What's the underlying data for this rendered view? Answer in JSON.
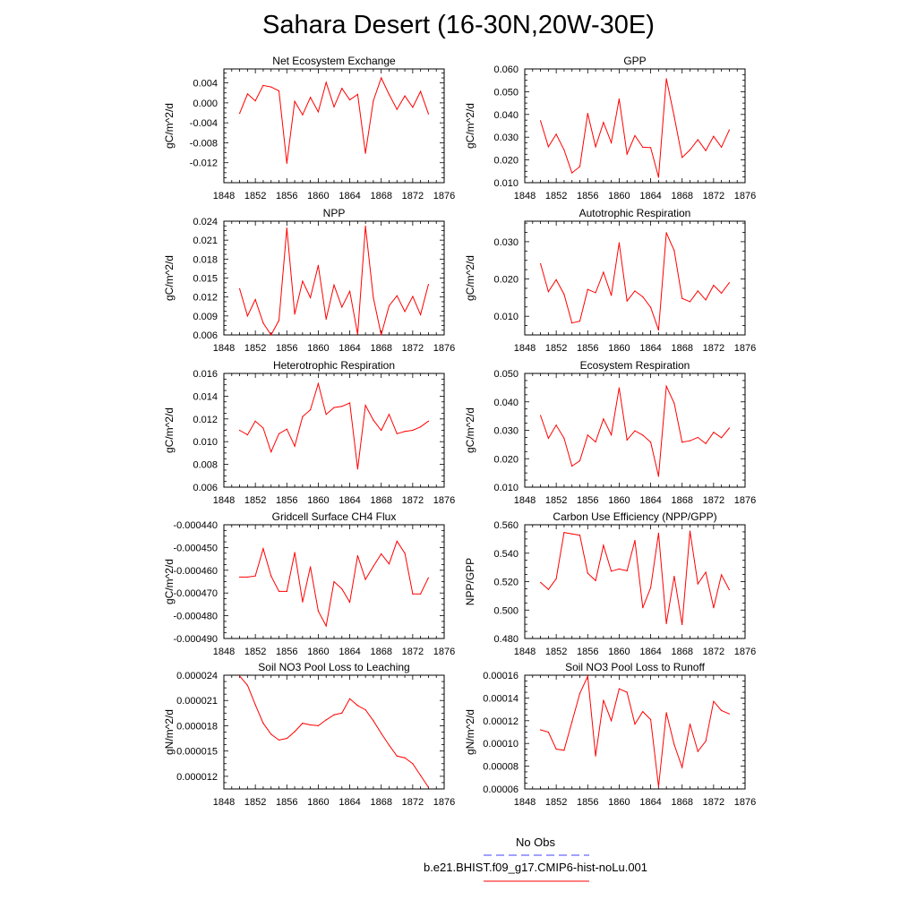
{
  "title": "Sahara Desert (16-30N,20W-30E)",
  "legend": {
    "entries": [
      {
        "label": "No Obs",
        "color": "#4040ff",
        "dash": true
      },
      {
        "label": "b.e21.BHIST.f09_g17.CMIP6-hist-noLu.001",
        "color": "#ff0000",
        "dash": false
      }
    ]
  },
  "chart_data": [
    {
      "type": "line",
      "title": "Net Ecosystem Exchange",
      "ylabel": "gC/m^2/d",
      "xlim": [
        1848,
        1876
      ],
      "ylim": [
        -0.016,
        0.0068
      ],
      "xticks": [
        1848,
        1852,
        1856,
        1860,
        1864,
        1868,
        1872,
        1876
      ],
      "yticks": [
        -0.012,
        -0.008,
        -0.004,
        0.0,
        0.004
      ],
      "ytick_labels": [
        "-0.012",
        "-0.008",
        "-0.004",
        "0.000",
        "0.004"
      ],
      "series": [
        {
          "color": "#ff0000",
          "x": [
            1850,
            1851,
            1852,
            1853,
            1854,
            1855,
            1856,
            1857,
            1858,
            1859,
            1860,
            1861,
            1862,
            1863,
            1864,
            1865,
            1866,
            1867,
            1868,
            1869,
            1870,
            1871,
            1872,
            1873,
            1874
          ],
          "y": [
            -0.0021,
            0.0018,
            0.0004,
            0.0035,
            0.0032,
            0.0024,
            -0.0121,
            0.0003,
            -0.0024,
            0.0011,
            -0.0018,
            0.0041,
            -0.0008,
            0.0029,
            0.0006,
            0.0017,
            -0.0101,
            0.0004,
            0.005,
            0.0017,
            -0.0013,
            0.0014,
            -0.0009,
            0.0023,
            -0.0022
          ]
        }
      ]
    },
    {
      "type": "line",
      "title": "GPP",
      "ylabel": "gC/m^2/d",
      "xlim": [
        1848,
        1876
      ],
      "ylim": [
        0.01,
        0.06
      ],
      "xticks": [
        1848,
        1852,
        1856,
        1860,
        1864,
        1868,
        1872,
        1876
      ],
      "yticks": [
        0.01,
        0.02,
        0.03,
        0.04,
        0.05,
        0.06
      ],
      "ytick_labels": [
        "0.010",
        "0.020",
        "0.030",
        "0.040",
        "0.050",
        "0.060"
      ],
      "series": [
        {
          "color": "#ff0000",
          "x": [
            1850,
            1851,
            1852,
            1853,
            1854,
            1855,
            1856,
            1857,
            1858,
            1859,
            1860,
            1861,
            1862,
            1863,
            1864,
            1865,
            1866,
            1867,
            1868,
            1869,
            1870,
            1871,
            1872,
            1873,
            1874
          ],
          "y": [
            0.0372,
            0.0258,
            0.0313,
            0.0244,
            0.0143,
            0.0171,
            0.0404,
            0.0258,
            0.0365,
            0.0276,
            0.0468,
            0.0226,
            0.0307,
            0.0256,
            0.0254,
            0.0124,
            0.0557,
            0.0391,
            0.0211,
            0.0244,
            0.0289,
            0.0241,
            0.0304,
            0.0256,
            0.0332
          ]
        }
      ]
    },
    {
      "type": "line",
      "title": "NPP",
      "ylabel": "gC/m^2/d",
      "xlim": [
        1848,
        1876
      ],
      "ylim": [
        0.006,
        0.024
      ],
      "xticks": [
        1848,
        1852,
        1856,
        1860,
        1864,
        1868,
        1872,
        1876
      ],
      "yticks": [
        0.006,
        0.009,
        0.012,
        0.015,
        0.018,
        0.021,
        0.024
      ],
      "ytick_labels": [
        "0.006",
        "0.009",
        "0.012",
        "0.015",
        "0.018",
        "0.021",
        "0.024"
      ],
      "series": [
        {
          "color": "#ff0000",
          "x": [
            1850,
            1851,
            1852,
            1853,
            1854,
            1855,
            1856,
            1857,
            1858,
            1859,
            1860,
            1861,
            1862,
            1863,
            1864,
            1865,
            1866,
            1867,
            1868,
            1869,
            1870,
            1871,
            1872,
            1873,
            1874
          ],
          "y": [
            0.0133,
            0.009,
            0.0116,
            0.0079,
            0.006,
            0.0083,
            0.0229,
            0.0093,
            0.0145,
            0.0119,
            0.017,
            0.0085,
            0.0139,
            0.0104,
            0.0129,
            0.0061,
            0.0232,
            0.0119,
            0.006,
            0.0106,
            0.0122,
            0.0097,
            0.0121,
            0.0092,
            0.014
          ]
        }
      ]
    },
    {
      "type": "line",
      "title": "Autotrophic Respiration",
      "ylabel": "gC/m^2/d",
      "xlim": [
        1848,
        1876
      ],
      "ylim": [
        0.005,
        0.0355
      ],
      "xticks": [
        1848,
        1852,
        1856,
        1860,
        1864,
        1868,
        1872,
        1876
      ],
      "yticks": [
        0.01,
        0.02,
        0.03
      ],
      "ytick_labels": [
        "0.010",
        "0.020",
        "0.030"
      ],
      "series": [
        {
          "color": "#ff0000",
          "x": [
            1850,
            1851,
            1852,
            1853,
            1854,
            1855,
            1856,
            1857,
            1858,
            1859,
            1860,
            1861,
            1862,
            1863,
            1864,
            1865,
            1866,
            1867,
            1868,
            1869,
            1870,
            1871,
            1872,
            1873,
            1874
          ],
          "y": [
            0.0241,
            0.0166,
            0.0198,
            0.0159,
            0.0082,
            0.0087,
            0.0172,
            0.0163,
            0.0218,
            0.0156,
            0.0297,
            0.0141,
            0.0168,
            0.0152,
            0.0124,
            0.0063,
            0.0324,
            0.0276,
            0.0148,
            0.0139,
            0.0168,
            0.0144,
            0.0183,
            0.0162,
            0.019
          ]
        }
      ]
    },
    {
      "type": "line",
      "title": "Heterotrophic Respiration",
      "ylabel": "gC/m^2/d",
      "xlim": [
        1848,
        1876
      ],
      "ylim": [
        0.006,
        0.016
      ],
      "xticks": [
        1848,
        1852,
        1856,
        1860,
        1864,
        1868,
        1872,
        1876
      ],
      "yticks": [
        0.006,
        0.008,
        0.01,
        0.012,
        0.014,
        0.016
      ],
      "ytick_labels": [
        "0.006",
        "0.008",
        "0.010",
        "0.012",
        "0.014",
        "0.016"
      ],
      "series": [
        {
          "color": "#ff0000",
          "x": [
            1850,
            1851,
            1852,
            1853,
            1854,
            1855,
            1856,
            1857,
            1858,
            1859,
            1860,
            1861,
            1862,
            1863,
            1864,
            1865,
            1866,
            1867,
            1868,
            1869,
            1870,
            1871,
            1872,
            1873,
            1874
          ],
          "y": [
            0.011,
            0.0106,
            0.0118,
            0.0112,
            0.0091,
            0.0107,
            0.0111,
            0.0096,
            0.0122,
            0.0128,
            0.0151,
            0.0124,
            0.013,
            0.0131,
            0.0134,
            0.0076,
            0.0132,
            0.0119,
            0.011,
            0.0124,
            0.0107,
            0.0109,
            0.011,
            0.0113,
            0.0118
          ]
        }
      ]
    },
    {
      "type": "line",
      "title": "Ecosystem Respiration",
      "ylabel": "gC/m^2/d",
      "xlim": [
        1848,
        1876
      ],
      "ylim": [
        0.01,
        0.05
      ],
      "xticks": [
        1848,
        1852,
        1856,
        1860,
        1864,
        1868,
        1872,
        1876
      ],
      "yticks": [
        0.01,
        0.02,
        0.03,
        0.04,
        0.05
      ],
      "ytick_labels": [
        "0.010",
        "0.020",
        "0.030",
        "0.040",
        "0.050"
      ],
      "series": [
        {
          "color": "#ff0000",
          "x": [
            1850,
            1851,
            1852,
            1853,
            1854,
            1855,
            1856,
            1857,
            1858,
            1859,
            1860,
            1861,
            1862,
            1863,
            1864,
            1865,
            1866,
            1867,
            1868,
            1869,
            1870,
            1871,
            1872,
            1873,
            1874
          ],
          "y": [
            0.0352,
            0.0272,
            0.0318,
            0.0272,
            0.0174,
            0.0193,
            0.0283,
            0.0259,
            0.034,
            0.0284,
            0.0449,
            0.0266,
            0.0298,
            0.0283,
            0.0258,
            0.0138,
            0.0455,
            0.0395,
            0.0258,
            0.0263,
            0.0275,
            0.0253,
            0.0293,
            0.0274,
            0.0308
          ]
        }
      ]
    },
    {
      "type": "line",
      "title": "Gridcell Surface CH4 Flux",
      "ylabel": "gC/m^2/d",
      "xlim": [
        1848,
        1876
      ],
      "ylim": [
        -0.00049,
        -0.00044
      ],
      "xticks": [
        1848,
        1852,
        1856,
        1860,
        1864,
        1868,
        1872,
        1876
      ],
      "yticks": [
        -0.00049,
        -0.00048,
        -0.00047,
        -0.00046,
        -0.00045,
        -0.00044
      ],
      "ytick_labels": [
        "-0.000490",
        "-0.000480",
        "-0.000470",
        "-0.000460",
        "-0.000450",
        "-0.000440"
      ],
      "series": [
        {
          "color": "#ff0000",
          "x": [
            1850,
            1851,
            1852,
            1853,
            1854,
            1855,
            1856,
            1857,
            1858,
            1859,
            1860,
            1861,
            1862,
            1863,
            1864,
            1865,
            1866,
            1867,
            1868,
            1869,
            1870,
            1871,
            1872,
            1873,
            1874
          ],
          "y": [
            -0.000463,
            -0.000463,
            -0.0004625,
            -0.0004505,
            -0.0004625,
            -0.0004693,
            -0.0004693,
            -0.0004522,
            -0.0004739,
            -0.0004585,
            -0.0004779,
            -0.0004845,
            -0.000465,
            -0.0004682,
            -0.000474,
            -0.0004536,
            -0.000464,
            -0.0004583,
            -0.0004528,
            -0.0004572,
            -0.0004472,
            -0.0004525,
            -0.0004704,
            -0.0004704,
            -0.0004633
          ]
        }
      ]
    },
    {
      "type": "line",
      "title": "Carbon Use Efficiency (NPP/GPP)",
      "ylabel": "NPP/GPP",
      "xlim": [
        1848,
        1876
      ],
      "ylim": [
        0.48,
        0.56
      ],
      "xticks": [
        1848,
        1852,
        1856,
        1860,
        1864,
        1868,
        1872,
        1876
      ],
      "yticks": [
        0.48,
        0.5,
        0.52,
        0.54,
        0.56
      ],
      "ytick_labels": [
        "0.480",
        "0.500",
        "0.520",
        "0.540",
        "0.560"
      ],
      "series": [
        {
          "color": "#ff0000",
          "x": [
            1850,
            1851,
            1852,
            1853,
            1854,
            1855,
            1856,
            1857,
            1858,
            1859,
            1860,
            1861,
            1862,
            1863,
            1864,
            1865,
            1866,
            1867,
            1868,
            1869,
            1870,
            1871,
            1872,
            1873,
            1874
          ],
          "y": [
            0.5195,
            0.5145,
            0.522,
            0.5546,
            0.5536,
            0.5527,
            0.5259,
            0.5207,
            0.5455,
            0.5274,
            0.5289,
            0.5276,
            0.549,
            0.5016,
            0.5157,
            0.5541,
            0.4905,
            0.5237,
            0.4898,
            0.5555,
            0.5184,
            0.5266,
            0.5016,
            0.5248,
            0.5143
          ]
        }
      ]
    },
    {
      "type": "line",
      "title": "Soil NO3 Pool Loss to Leaching",
      "ylabel": "gN/m^2/d",
      "xlim": [
        1848,
        1876
      ],
      "ylim": [
        1.05e-05,
        2.4e-05
      ],
      "xticks": [
        1848,
        1852,
        1856,
        1860,
        1864,
        1868,
        1872,
        1876
      ],
      "yticks": [
        1.2e-05,
        1.5e-05,
        1.8e-05,
        2.1e-05,
        2.4e-05
      ],
      "ytick_labels": [
        "0.000012",
        "0.000015",
        "0.000018",
        "0.000021",
        "0.000024"
      ],
      "series": [
        {
          "color": "#ff0000",
          "x": [
            1850,
            1851,
            1852,
            1853,
            1854,
            1855,
            1856,
            1857,
            1858,
            1859,
            1860,
            1861,
            1862,
            1863,
            1864,
            1865,
            1866,
            1867,
            1868,
            1869,
            1870,
            1871,
            1872,
            1873,
            1874
          ],
          "y": [
            2.39e-05,
            2.28e-05,
            2.05e-05,
            1.83e-05,
            1.7e-05,
            1.63e-05,
            1.65e-05,
            1.73e-05,
            1.83e-05,
            1.81e-05,
            1.8e-05,
            1.87e-05,
            1.93e-05,
            1.95e-05,
            2.12e-05,
            2.04e-05,
            1.99e-05,
            1.86e-05,
            1.71e-05,
            1.57e-05,
            1.44e-05,
            1.42e-05,
            1.35e-05,
            1.21e-05,
            1.07e-05
          ]
        }
      ]
    },
    {
      "type": "line",
      "title": "Soil NO3 Pool Loss to Runoff",
      "ylabel": "gN/m^2/d",
      "xlim": [
        1848,
        1876
      ],
      "ylim": [
        6e-05,
        0.00016
      ],
      "xticks": [
        1848,
        1852,
        1856,
        1860,
        1864,
        1868,
        1872,
        1876
      ],
      "yticks": [
        6e-05,
        8e-05,
        0.0001,
        0.00012,
        0.00014,
        0.00016
      ],
      "ytick_labels": [
        "0.00006",
        "0.00008",
        "0.00010",
        "0.00012",
        "0.00014",
        "0.00016"
      ],
      "series": [
        {
          "color": "#ff0000",
          "x": [
            1850,
            1851,
            1852,
            1853,
            1854,
            1855,
            1856,
            1857,
            1858,
            1859,
            1860,
            1861,
            1862,
            1863,
            1864,
            1865,
            1866,
            1867,
            1868,
            1869,
            1870,
            1871,
            1872,
            1873,
            1874
          ],
          "y": [
            0.000112,
            0.00011,
            9.5e-05,
            9.4e-05,
            0.000119,
            0.000144,
            0.000159,
            8.9e-05,
            0.000138,
            0.00012,
            0.000148,
            0.000145,
            0.000117,
            0.000128,
            0.000121,
            6.2e-05,
            0.000127,
            9.9e-05,
            7.9e-05,
            0.000117,
            9.3e-05,
            0.000102,
            0.000137,
            0.000129,
            0.000126
          ]
        }
      ]
    }
  ]
}
